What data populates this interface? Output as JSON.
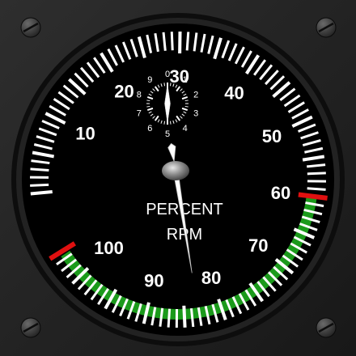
{
  "gauge": {
    "caption_line1": "PERCENT",
    "caption_line2": "RPM",
    "main_dial": {
      "min": 0,
      "max": 105,
      "labels": [
        {
          "id": "10",
          "text": "10"
        },
        {
          "id": "20",
          "text": "20"
        },
        {
          "id": "30",
          "text": "30"
        },
        {
          "id": "40",
          "text": "40"
        },
        {
          "id": "50",
          "text": "50"
        },
        {
          "id": "60",
          "text": "60"
        },
        {
          "id": "70",
          "text": "70"
        },
        {
          "id": "80",
          "text": "80"
        },
        {
          "id": "90",
          "text": "90"
        },
        {
          "id": "100",
          "text": "100"
        }
      ],
      "green_arc_range": [
        60,
        103.5
      ],
      "red_marks": [
        60,
        104
      ],
      "needle_value": 83,
      "colors": {
        "green": "#1b9a1b",
        "red": "#e01010",
        "tick": "#ffffff"
      }
    },
    "sub_dial": {
      "labels": [
        "0",
        "1",
        "2",
        "3",
        "4",
        "5",
        "6",
        "7",
        "8",
        "9"
      ],
      "needle_value": 0
    },
    "screws": [
      "top-left",
      "top-right",
      "bottom-left",
      "bottom-right"
    ]
  }
}
